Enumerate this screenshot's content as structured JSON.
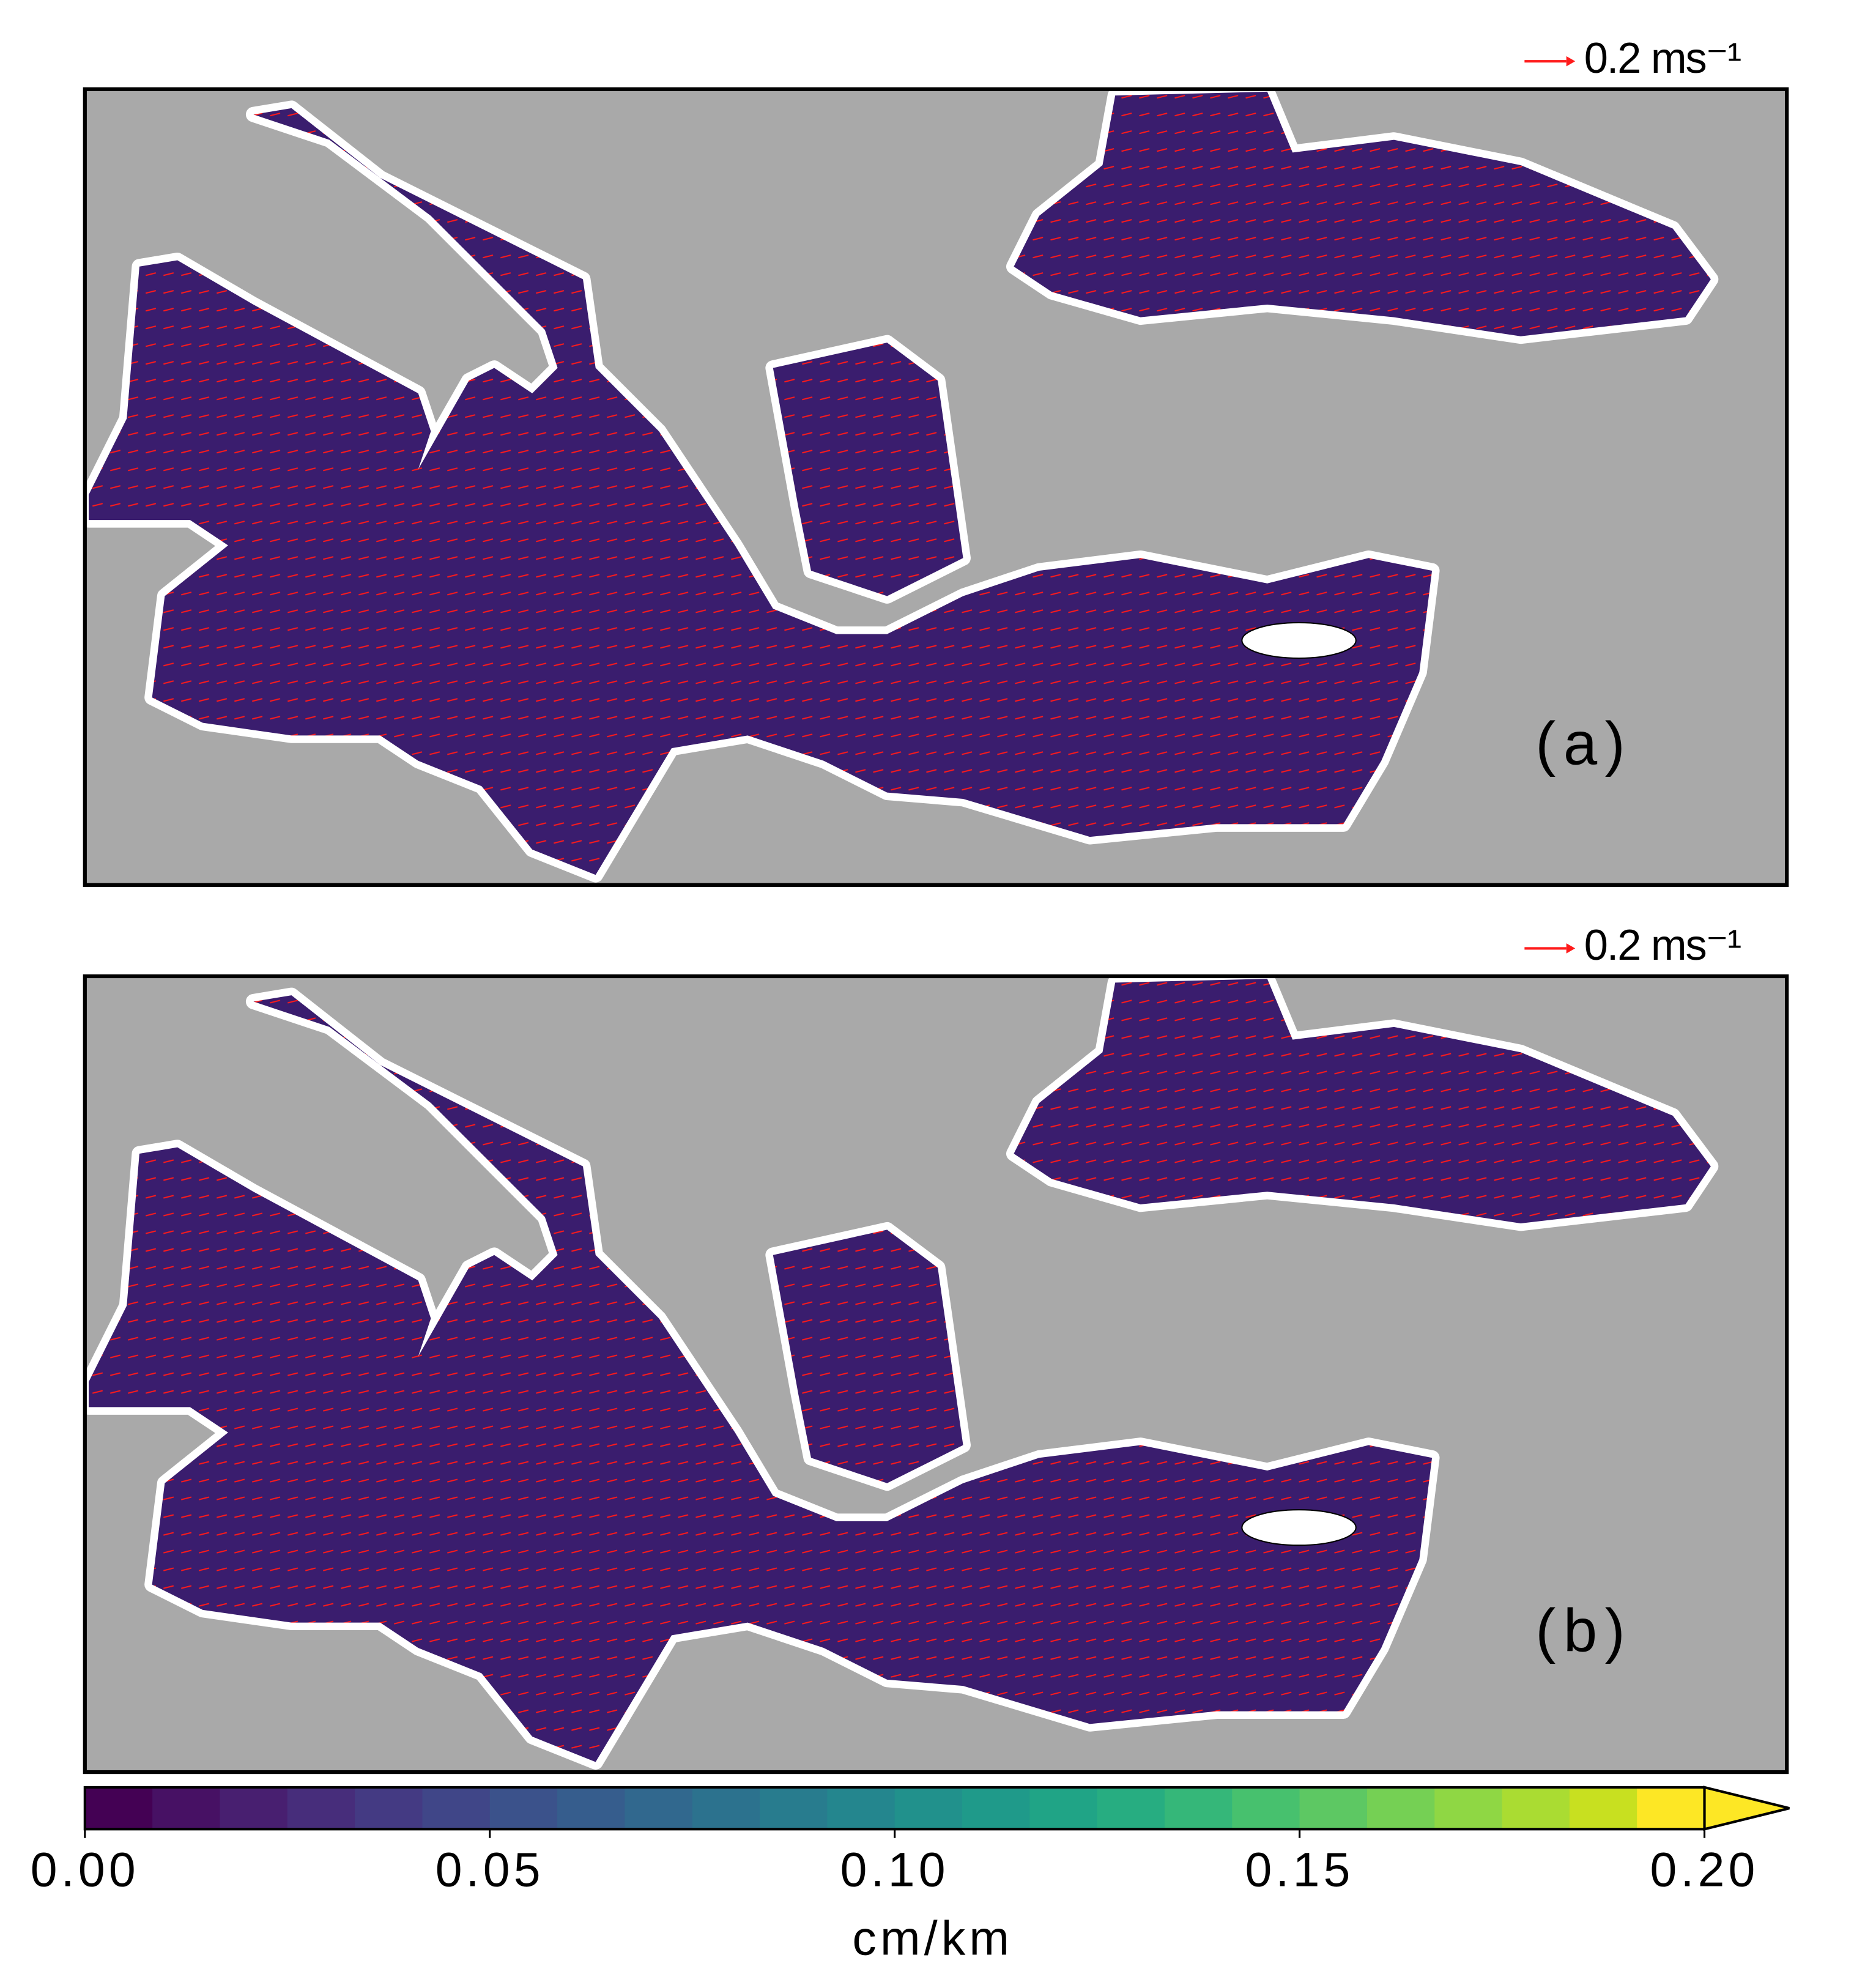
{
  "panels": [
    {
      "label": "(a)",
      "scale_label": "0.2 ms⁻¹"
    },
    {
      "label": "(b)",
      "scale_label": "0.2 ms⁻¹"
    }
  ],
  "colorbar": {
    "lim": [
      0,
      0.2
    ],
    "ticks": [
      {
        "value": 0,
        "label": "0.00"
      },
      0.05,
      {
        "value": 0.1,
        "label": "0.10"
      },
      0.15,
      {
        "value": 0.2,
        "label": "0.20"
      }
    ],
    "label": "cm/km",
    "colors": [
      "#440154",
      "#471164",
      "#481f70",
      "#472d7b",
      "#443a83",
      "#404688",
      "#3b528b",
      "#365d8d",
      "#31688e",
      "#2c728e",
      "#287c8e",
      "#24868e",
      "#21918c",
      "#1f9a8a",
      "#20a486",
      "#27ad81",
      "#35b779",
      "#47c16e",
      "#5dc863",
      "#75d054",
      "#8fd744",
      "#aadc32",
      "#c8e020",
      "#fde725"
    ],
    "extend": "max"
  }
}
